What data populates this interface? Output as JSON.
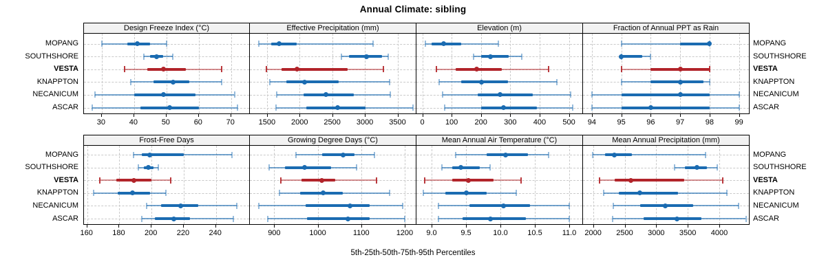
{
  "chart_data": {
    "type": "dotplot",
    "title": "Annual Climate: sibling",
    "xlabel": "5th-25th-50th-75th-95th Percentiles",
    "sites": [
      "MOPANG",
      "SOUTHSHORE",
      "VESTA",
      "KNAPPTON",
      "NECANICUM",
      "ASCAR"
    ],
    "highlight_site": "VESTA",
    "percentiles": [
      "5th",
      "25th",
      "50th",
      "75th",
      "95th"
    ],
    "legend_position": "none",
    "grid": "dashed",
    "layout": {
      "rows": 2,
      "cols": 4
    },
    "colors": {
      "series": "#1a6bb1",
      "highlight": "#b2242a",
      "gridline": "#c9c9c9",
      "header_bg": "#f2f2f2",
      "border": "#000000"
    },
    "panels": [
      {
        "title": "Design Freeze Index (°C)",
        "xlim": [
          24.5,
          76
        ],
        "tick_values": [
          30,
          40,
          50,
          60,
          70
        ],
        "tick_labels": [
          "30",
          "40",
          "50",
          "60",
          "70"
        ],
        "values": {
          "MOPANG": [
            30,
            38,
            41,
            45,
            50
          ],
          "SOUTHSHORE": [
            43,
            45,
            47,
            49,
            52
          ],
          "VESTA": [
            37,
            44,
            49,
            56,
            67
          ],
          "KNAPPTON": [
            39,
            46,
            52,
            57,
            67
          ],
          "NECANICUM": [
            28,
            40,
            49,
            59,
            71
          ],
          "ASCAR": [
            27,
            42,
            51,
            60,
            72
          ]
        }
      },
      {
        "title": "Effective Precipitation (mm)",
        "xlim": [
          1238,
          3790
        ],
        "tick_values": [
          1500,
          2000,
          2500,
          3000,
          3500
        ],
        "tick_labels": [
          "1500",
          "2000",
          "2500",
          "3000",
          "3500"
        ],
        "values": {
          "MOPANG": [
            1380,
            1570,
            1690,
            1950,
            3130
          ],
          "SOUTHSHORE": [
            2640,
            2760,
            3030,
            3260,
            3360
          ],
          "VESTA": [
            1490,
            1720,
            1960,
            2740,
            3280
          ],
          "KNAPPTON": [
            1540,
            1800,
            2080,
            2600,
            3380
          ],
          "NECANICUM": [
            1650,
            2060,
            2400,
            2830,
            3390
          ],
          "ASCAR": [
            1640,
            2100,
            2580,
            3010,
            3740
          ]
        }
      },
      {
        "title": "Elevation (m)",
        "xlim": [
          -20,
          548
        ],
        "tick_values": [
          0,
          100,
          200,
          300,
          400,
          500
        ],
        "tick_labels": [
          "0",
          "100",
          "200",
          "300",
          "400",
          "500"
        ],
        "values": {
          "MOPANG": [
            10,
            32,
            72,
            132,
            260
          ],
          "SOUTHSHORE": [
            175,
            200,
            232,
            295,
            338
          ],
          "VESTA": [
            48,
            113,
            186,
            270,
            430
          ],
          "KNAPPTON": [
            58,
            133,
            202,
            292,
            458
          ],
          "NECANICUM": [
            70,
            190,
            265,
            377,
            505
          ],
          "ASCAR": [
            77,
            201,
            277,
            391,
            513
          ]
        }
      },
      {
        "title": "Fraction of Annual PPT as Rain",
        "xlim": [
          93.7,
          99.36
        ],
        "tick_values": [
          94,
          95,
          96,
          97,
          98,
          99
        ],
        "tick_labels": [
          "94",
          "95",
          "96",
          "97",
          "98",
          "99"
        ],
        "values": {
          "MOPANG": [
            95,
            97,
            98,
            98,
            98
          ],
          "SOUTHSHORE": [
            95,
            95,
            95,
            95.7,
            96
          ],
          "VESTA": [
            95,
            96,
            97,
            98,
            98
          ],
          "KNAPPTON": [
            95,
            96,
            97,
            97.8,
            98
          ],
          "NECANICUM": [
            94,
            95,
            97,
            98,
            99
          ],
          "ASCAR": [
            94,
            95,
            96,
            98,
            99
          ]
        }
      },
      {
        "title": "Frost-Free Days",
        "xlim": [
          158,
          261.5
        ],
        "tick_values": [
          160,
          180,
          200,
          220,
          240
        ],
        "tick_labels": [
          "160",
          "180",
          "200",
          "220",
          "240"
        ],
        "values": {
          "MOPANG": [
            189,
            194,
            199,
            220,
            250
          ],
          "SOUTHSHORE": [
            192,
            195,
            198,
            201,
            204
          ],
          "VESTA": [
            168,
            178,
            189,
            200,
            212
          ],
          "KNAPPTON": [
            164,
            179,
            188,
            199,
            209
          ],
          "NECANICUM": [
            197,
            206,
            218,
            229,
            253
          ],
          "ASCAR": [
            194,
            202,
            214,
            224,
            251
          ]
        }
      },
      {
        "title": "Growing Degree Days (°C)",
        "xlim": [
          844,
          1227
        ],
        "tick_values": [
          900,
          1000,
          1100,
          1200
        ],
        "tick_labels": [
          "900",
          "1000",
          "1100",
          "1200"
        ],
        "values": {
          "MOPANG": [
            950,
            1010,
            1058,
            1085,
            1130
          ],
          "SOUTHSHORE": [
            888,
            925,
            970,
            1030,
            1090
          ],
          "VESTA": [
            915,
            963,
            1010,
            1040,
            1135
          ],
          "KNAPPTON": [
            912,
            960,
            1012,
            1057,
            1165
          ],
          "NECANICUM": [
            865,
            972,
            1075,
            1120,
            1195
          ],
          "ASCAR": [
            885,
            975,
            1070,
            1120,
            1200
          ]
        }
      },
      {
        "title": "Mean Annual Air Temperature (°C)",
        "xlim": [
          8.78,
          11.2
        ],
        "tick_values": [
          9.0,
          9.5,
          10.0,
          10.5,
          11.0
        ],
        "tick_labels": [
          "9.0",
          "9.5",
          "10.0",
          "10.5",
          "11.0"
        ],
        "values": {
          "MOPANG": [
            9.35,
            9.8,
            10.07,
            10.4,
            10.7
          ],
          "SOUTHSHORE": [
            9.15,
            9.3,
            9.42,
            9.7,
            9.85
          ],
          "VESTA": [
            8.9,
            9.3,
            9.53,
            9.9,
            10.3
          ],
          "KNAPPTON": [
            8.88,
            9.2,
            9.5,
            9.8,
            10.23
          ],
          "NECANICUM": [
            9.1,
            9.55,
            10.04,
            10.43,
            11.0
          ],
          "ASCAR": [
            9.1,
            9.45,
            9.85,
            10.37,
            11.0
          ]
        }
      },
      {
        "title": "Mean Annual Precipitation (mm)",
        "xlim": [
          1840,
          4480
        ],
        "tick_values": [
          2000,
          2500,
          3000,
          3500,
          4000
        ],
        "tick_labels": [
          "2000",
          "2500",
          "3000",
          "3500",
          "4000"
        ],
        "values": {
          "MOPANG": [
            1990,
            2190,
            2340,
            2620,
            3780
          ],
          "SOUTHSHORE": [
            3290,
            3450,
            3650,
            3800,
            3970
          ],
          "VESTA": [
            2100,
            2340,
            2600,
            3440,
            4050
          ],
          "KNAPPTON": [
            2170,
            2410,
            2740,
            3350,
            4120
          ],
          "NECANICUM": [
            2320,
            2750,
            3140,
            3590,
            4300
          ],
          "ASCAR": [
            2310,
            2800,
            3330,
            3720,
            4420
          ]
        }
      }
    ]
  }
}
